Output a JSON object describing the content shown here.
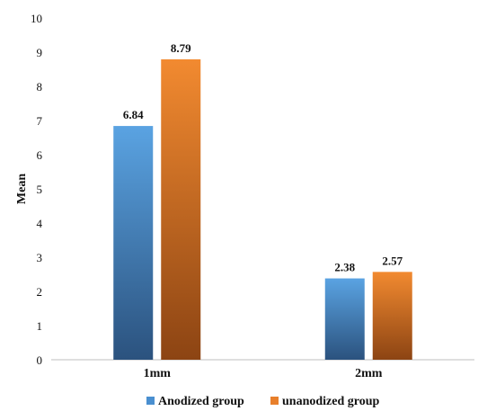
{
  "chart_data": {
    "type": "bar",
    "categories": [
      "1mm",
      "2mm"
    ],
    "series": [
      {
        "name": "Anodized group",
        "values": [
          6.84,
          2.38
        ],
        "color_top": "#5aa3e2",
        "color_bottom": "#2b527e"
      },
      {
        "name": "unanodized group",
        "values": [
          8.79,
          2.57
        ],
        "color_top": "#f28a30",
        "color_bottom": "#8c4413"
      }
    ],
    "data_labels": [
      [
        "6.84",
        "2.38"
      ],
      [
        "8.79",
        "2.57"
      ]
    ],
    "ylabel": "Mean",
    "xlabel": "",
    "ylim": [
      0,
      10
    ],
    "yticks": [
      "0",
      "1",
      "2",
      "3",
      "4",
      "5",
      "6",
      "7",
      "8",
      "9",
      "10"
    ],
    "grid": false,
    "legend_position": "bottom"
  }
}
